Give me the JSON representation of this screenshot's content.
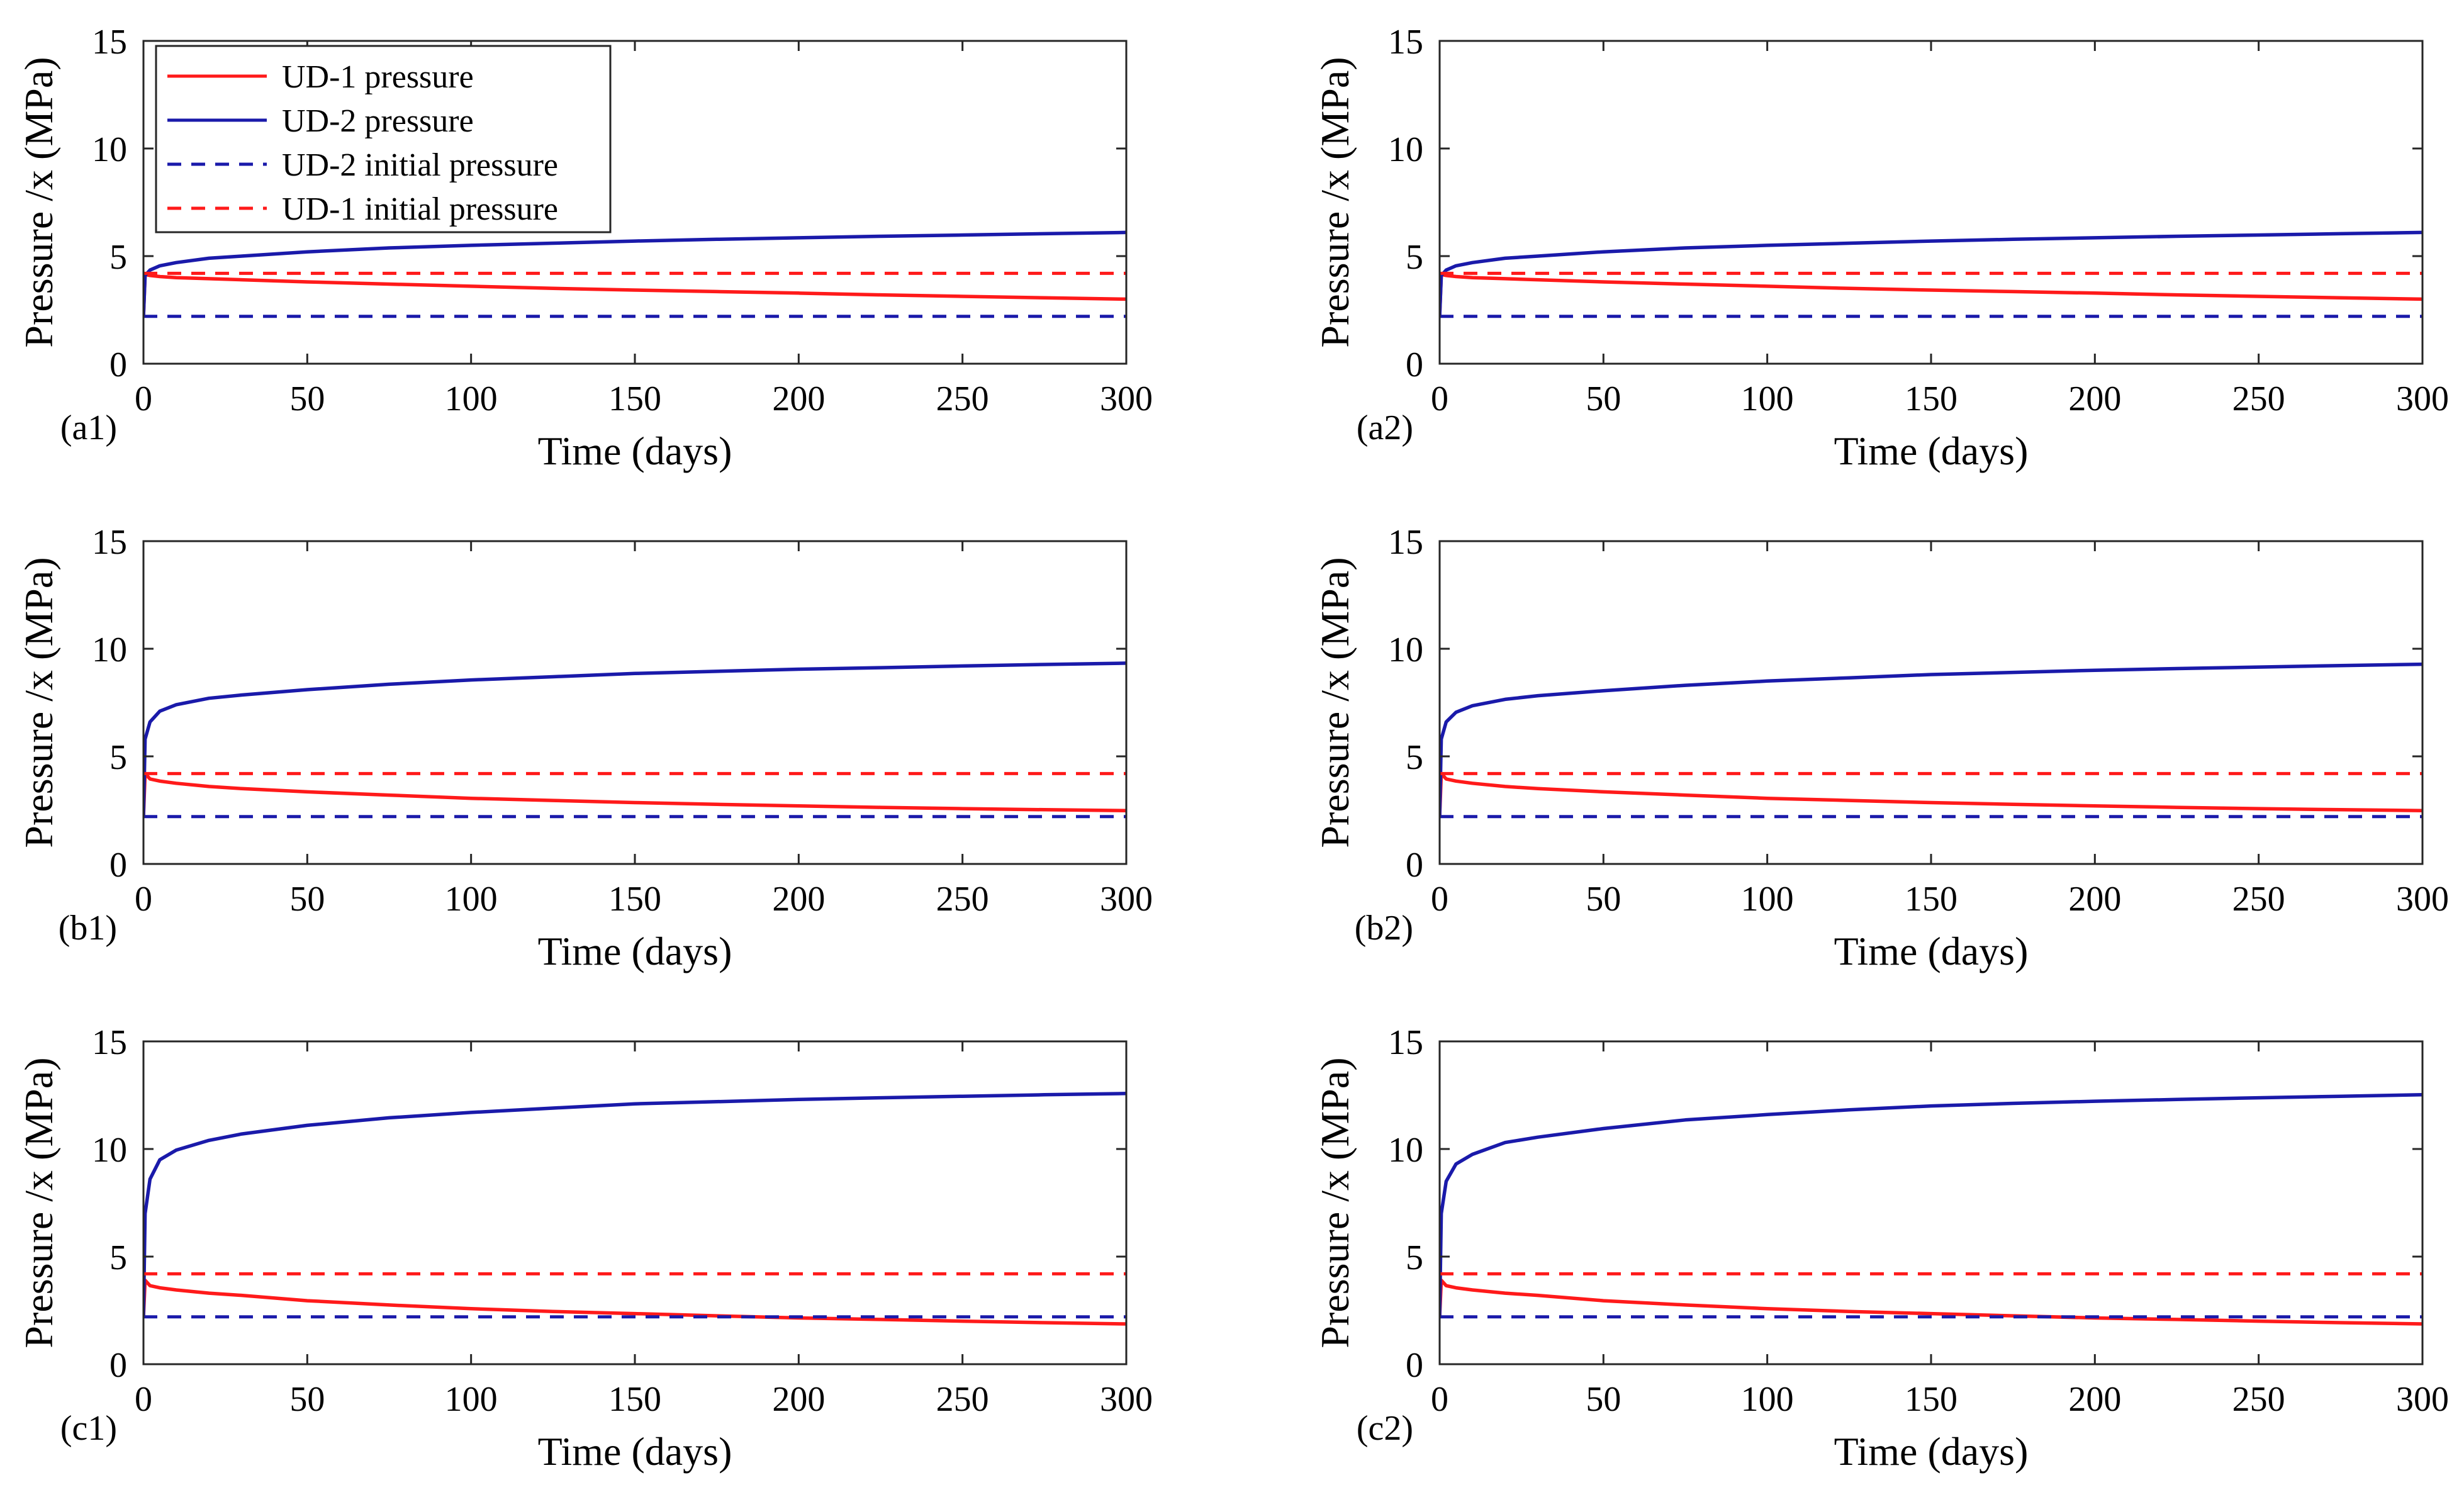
{
  "figure": {
    "colors": {
      "ud1": "#ff1a1a",
      "ud2": "#1a1aaa",
      "ud2_initial": "#1a1aaa",
      "ud1_initial": "#ff1a1a"
    }
  },
  "chart_data": [
    {
      "type": "line",
      "panel_label": "(a1)",
      "xlabel": "Time (days)",
      "ylabel": "Pressure /x (MPa)",
      "xlim": [
        0,
        300
      ],
      "ylim": [
        0,
        15
      ],
      "xticks": [
        0,
        50,
        100,
        150,
        200,
        250,
        300
      ],
      "yticks": [
        0,
        5,
        10,
        15
      ],
      "x": [
        0,
        0.5,
        2,
        5,
        10,
        20,
        30,
        50,
        75,
        100,
        125,
        150,
        175,
        200,
        225,
        250,
        275,
        300
      ],
      "legend": {
        "position": "top-left",
        "show": true
      },
      "series": [
        {
          "name": "UD-1 pressure",
          "style": "solid",
          "color": "#ff1a1a",
          "values": [
            2.2,
            4.15,
            4.1,
            4.05,
            4.0,
            3.95,
            3.9,
            3.8,
            3.7,
            3.6,
            3.5,
            3.42,
            3.35,
            3.28,
            3.2,
            3.13,
            3.06,
            3.0
          ]
        },
        {
          "name": "UD-2 pressure",
          "style": "solid",
          "color": "#1a1aaa",
          "values": [
            2.2,
            4.1,
            4.35,
            4.55,
            4.7,
            4.9,
            5.0,
            5.2,
            5.38,
            5.5,
            5.6,
            5.7,
            5.78,
            5.85,
            5.92,
            5.98,
            6.04,
            6.1
          ]
        },
        {
          "name": "UD-2 initial pressure",
          "style": "dashed",
          "color": "#1a1aaa",
          "constant": 2.2
        },
        {
          "name": "UD-1 initial pressure",
          "style": "dashed",
          "color": "#ff1a1a",
          "constant": 4.2
        }
      ]
    },
    {
      "type": "line",
      "panel_label": "(a2)",
      "xlabel": "Time (days)",
      "ylabel": "Pressure /x (MPa)",
      "xlim": [
        0,
        300
      ],
      "ylim": [
        0,
        15
      ],
      "xticks": [
        0,
        50,
        100,
        150,
        200,
        250,
        300
      ],
      "yticks": [
        0,
        5,
        10,
        15
      ],
      "x": [
        0,
        0.5,
        2,
        5,
        10,
        20,
        30,
        50,
        75,
        100,
        125,
        150,
        175,
        200,
        225,
        250,
        275,
        300
      ],
      "legend": {
        "position": "none",
        "show": false
      },
      "series": [
        {
          "name": "UD-1 pressure",
          "style": "solid",
          "color": "#ff1a1a",
          "values": [
            2.2,
            4.15,
            4.1,
            4.05,
            4.0,
            3.95,
            3.9,
            3.8,
            3.7,
            3.6,
            3.5,
            3.42,
            3.35,
            3.28,
            3.2,
            3.13,
            3.06,
            3.0
          ]
        },
        {
          "name": "UD-2 pressure",
          "style": "solid",
          "color": "#1a1aaa",
          "values": [
            2.2,
            4.1,
            4.35,
            4.55,
            4.7,
            4.9,
            5.0,
            5.2,
            5.38,
            5.5,
            5.6,
            5.7,
            5.78,
            5.85,
            5.92,
            5.98,
            6.04,
            6.1
          ]
        },
        {
          "name": "UD-2 initial pressure",
          "style": "dashed",
          "color": "#1a1aaa",
          "constant": 2.2
        },
        {
          "name": "UD-1 initial pressure",
          "style": "dashed",
          "color": "#ff1a1a",
          "constant": 4.2
        }
      ]
    },
    {
      "type": "line",
      "panel_label": "(b1)",
      "xlabel": "Time (days)",
      "ylabel": "Pressure /x (MPa)",
      "xlim": [
        0,
        300
      ],
      "ylim": [
        0,
        15
      ],
      "xticks": [
        0,
        50,
        100,
        150,
        200,
        250,
        300
      ],
      "yticks": [
        0,
        5,
        10,
        15
      ],
      "x": [
        0,
        0.5,
        2,
        5,
        10,
        20,
        30,
        50,
        75,
        100,
        125,
        150,
        175,
        200,
        225,
        250,
        275,
        300
      ],
      "legend": {
        "position": "none",
        "show": false
      },
      "series": [
        {
          "name": "UD-1 pressure",
          "style": "solid",
          "color": "#ff1a1a",
          "values": [
            2.2,
            4.2,
            3.95,
            3.85,
            3.75,
            3.6,
            3.5,
            3.35,
            3.2,
            3.05,
            2.95,
            2.85,
            2.77,
            2.7,
            2.63,
            2.57,
            2.52,
            2.48
          ]
        },
        {
          "name": "UD-2 pressure",
          "style": "solid",
          "color": "#1a1aaa",
          "values": [
            2.2,
            5.8,
            6.6,
            7.1,
            7.4,
            7.7,
            7.85,
            8.1,
            8.35,
            8.55,
            8.7,
            8.85,
            8.95,
            9.05,
            9.12,
            9.2,
            9.27,
            9.33
          ]
        },
        {
          "name": "UD-2 initial pressure",
          "style": "dashed",
          "color": "#1a1aaa",
          "constant": 2.2
        },
        {
          "name": "UD-1 initial pressure",
          "style": "dashed",
          "color": "#ff1a1a",
          "constant": 4.2
        }
      ]
    },
    {
      "type": "line",
      "panel_label": "(b2)",
      "xlabel": "Time (days)",
      "ylabel": "Pressure /x (MPa)",
      "xlim": [
        0,
        300
      ],
      "ylim": [
        0,
        15
      ],
      "xticks": [
        0,
        50,
        100,
        150,
        200,
        250,
        300
      ],
      "yticks": [
        0,
        5,
        10,
        15
      ],
      "x": [
        0,
        0.5,
        2,
        5,
        10,
        20,
        30,
        50,
        75,
        100,
        125,
        150,
        175,
        200,
        225,
        250,
        275,
        300
      ],
      "legend": {
        "position": "none",
        "show": false
      },
      "series": [
        {
          "name": "UD-1 pressure",
          "style": "solid",
          "color": "#ff1a1a",
          "values": [
            2.2,
            4.2,
            3.95,
            3.85,
            3.75,
            3.6,
            3.5,
            3.35,
            3.2,
            3.05,
            2.95,
            2.85,
            2.77,
            2.7,
            2.63,
            2.57,
            2.52,
            2.48
          ]
        },
        {
          "name": "UD-2 pressure",
          "style": "solid",
          "color": "#1a1aaa",
          "values": [
            2.2,
            5.8,
            6.6,
            7.05,
            7.35,
            7.65,
            7.82,
            8.05,
            8.3,
            8.5,
            8.65,
            8.8,
            8.9,
            9.0,
            9.08,
            9.15,
            9.22,
            9.28
          ]
        },
        {
          "name": "UD-2 initial pressure",
          "style": "dashed",
          "color": "#1a1aaa",
          "constant": 2.2
        },
        {
          "name": "UD-1 initial pressure",
          "style": "dashed",
          "color": "#ff1a1a",
          "constant": 4.2
        }
      ]
    },
    {
      "type": "line",
      "panel_label": "(c1)",
      "xlabel": "Time (days)",
      "ylabel": "Pressure /x (MPa)",
      "xlim": [
        0,
        300
      ],
      "ylim": [
        0,
        15
      ],
      "xticks": [
        0,
        50,
        100,
        150,
        200,
        250,
        300
      ],
      "yticks": [
        0,
        5,
        10,
        15
      ],
      "x": [
        0,
        0.5,
        2,
        5,
        10,
        20,
        30,
        50,
        75,
        100,
        125,
        150,
        175,
        200,
        225,
        250,
        275,
        300
      ],
      "legend": {
        "position": "none",
        "show": false
      },
      "series": [
        {
          "name": "UD-1 pressure",
          "style": "solid",
          "color": "#ff1a1a",
          "values": [
            2.2,
            3.9,
            3.65,
            3.55,
            3.45,
            3.3,
            3.2,
            2.95,
            2.75,
            2.58,
            2.45,
            2.35,
            2.25,
            2.15,
            2.08,
            2.0,
            1.93,
            1.87
          ]
        },
        {
          "name": "UD-2 pressure",
          "style": "solid",
          "color": "#1a1aaa",
          "values": [
            2.2,
            7.0,
            8.6,
            9.5,
            9.95,
            10.4,
            10.7,
            11.1,
            11.45,
            11.7,
            11.9,
            12.1,
            12.2,
            12.3,
            12.38,
            12.45,
            12.52,
            12.58
          ]
        },
        {
          "name": "UD-2 initial pressure",
          "style": "dashed",
          "color": "#1a1aaa",
          "constant": 2.2
        },
        {
          "name": "UD-1 initial pressure",
          "style": "dashed",
          "color": "#ff1a1a",
          "constant": 4.2
        }
      ]
    },
    {
      "type": "line",
      "panel_label": "(c2)",
      "xlabel": "Time (days)",
      "ylabel": "Pressure /x (MPa)",
      "xlim": [
        0,
        300
      ],
      "ylim": [
        0,
        15
      ],
      "xticks": [
        0,
        50,
        100,
        150,
        200,
        250,
        300
      ],
      "yticks": [
        0,
        5,
        10,
        15
      ],
      "x": [
        0,
        0.5,
        2,
        5,
        10,
        20,
        30,
        50,
        75,
        100,
        125,
        150,
        175,
        200,
        225,
        250,
        275,
        300
      ],
      "legend": {
        "position": "none",
        "show": false
      },
      "series": [
        {
          "name": "UD-1 pressure",
          "style": "solid",
          "color": "#ff1a1a",
          "values": [
            2.2,
            3.9,
            3.65,
            3.55,
            3.45,
            3.3,
            3.2,
            2.95,
            2.75,
            2.58,
            2.45,
            2.35,
            2.25,
            2.15,
            2.08,
            2.0,
            1.93,
            1.87
          ]
        },
        {
          "name": "UD-2 pressure",
          "style": "solid",
          "color": "#1a1aaa",
          "values": [
            2.2,
            7.0,
            8.5,
            9.3,
            9.75,
            10.3,
            10.55,
            10.95,
            11.35,
            11.6,
            11.82,
            12.0,
            12.12,
            12.22,
            12.3,
            12.38,
            12.45,
            12.52
          ]
        },
        {
          "name": "UD-2 initial pressure",
          "style": "dashed",
          "color": "#1a1aaa",
          "constant": 2.2
        },
        {
          "name": "UD-1 initial pressure",
          "style": "dashed",
          "color": "#ff1a1a",
          "constant": 4.2
        }
      ]
    }
  ]
}
